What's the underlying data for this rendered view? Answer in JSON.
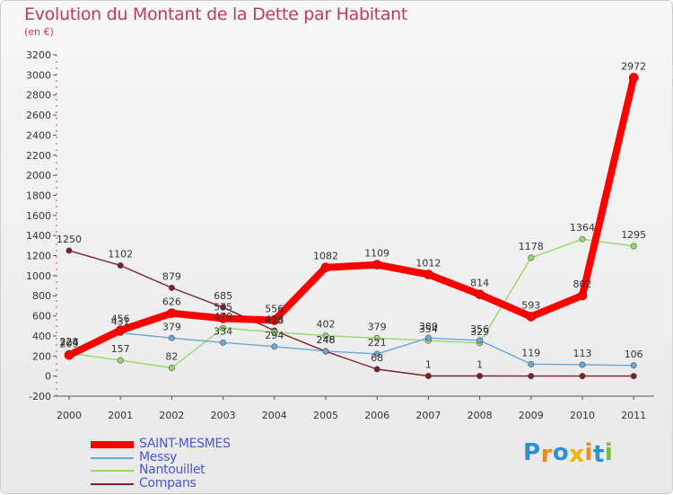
{
  "header": {
    "title": "Evolution du Montant de la Dette par Habitant",
    "subtitle": "(en €)"
  },
  "logo": {
    "letters": [
      "P",
      "r",
      "o",
      "x",
      "i",
      "t",
      "i"
    ],
    "colors": [
      "#2f8fd3",
      "#f08a1c",
      "#2f8fd3",
      "#e8b800",
      "#f08a1c",
      "#2f8fd3",
      "#7ab648"
    ]
  },
  "chart_data": {
    "type": "line",
    "title": "Evolution du Montant de la Dette par Habitant",
    "subtitle": "(en €)",
    "x": [
      "2000",
      "2001",
      "2002",
      "2003",
      "2004",
      "2005",
      "2006",
      "2007",
      "2008",
      "2009",
      "2010",
      "2011"
    ],
    "ylim": [
      -200,
      3200
    ],
    "yticks": [
      -200,
      0,
      200,
      400,
      600,
      800,
      1000,
      1200,
      1400,
      1600,
      1800,
      2000,
      2200,
      2400,
      2600,
      2800,
      3000,
      3200
    ],
    "grid": false,
    "legend_position": "bottom-left",
    "series": [
      {
        "name": "Compans",
        "color": "#7a1f2b",
        "values": [
          1250,
          1102,
          879,
          685,
          453,
          246,
          68,
          1,
          1,
          null,
          null,
          null
        ],
        "tail": [
          0,
          0,
          0
        ],
        "labels": true
      },
      {
        "name": "Nantouillet",
        "color": "#96d86a",
        "values": [
          228,
          157,
          82,
          479,
          438,
          402,
          379,
          354,
          329,
          1178,
          1364,
          1295
        ],
        "labels": true
      },
      {
        "name": "Messy",
        "color": "#6aa6d6",
        "values": [
          224,
          431,
          379,
          334,
          294,
          248,
          221,
          380,
          356,
          119,
          113,
          106
        ],
        "labels": true
      },
      {
        "name": "SAINT-MESMES",
        "color": "#ff0000",
        "values": [
          209,
          456,
          626,
          575,
          556,
          1082,
          1109,
          1012,
          814,
          593,
          802,
          2972
        ],
        "labels": true
      }
    ]
  }
}
